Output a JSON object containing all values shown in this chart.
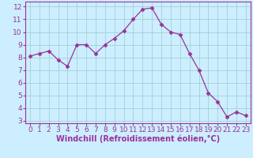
{
  "x": [
    0,
    1,
    2,
    3,
    4,
    5,
    6,
    7,
    8,
    9,
    10,
    11,
    12,
    13,
    14,
    15,
    16,
    17,
    18,
    19,
    20,
    21,
    22,
    23
  ],
  "y": [
    8.1,
    8.3,
    8.5,
    7.8,
    7.3,
    9.0,
    9.0,
    8.3,
    9.0,
    9.5,
    10.1,
    11.0,
    11.8,
    11.9,
    10.6,
    10.0,
    9.8,
    8.3,
    7.0,
    5.2,
    4.5,
    3.3,
    3.7,
    3.4
  ],
  "line_color": "#993399",
  "marker": "D",
  "marker_size": 2.5,
  "bg_color": "#cceeff",
  "grid_color": "#99cccc",
  "xlabel": "Windchill (Refroidissement éolien,°C)",
  "tick_color": "#993399",
  "ylim": [
    2.8,
    12.4
  ],
  "xlim": [
    -0.5,
    23.5
  ],
  "yticks": [
    3,
    4,
    5,
    6,
    7,
    8,
    9,
    10,
    11,
    12
  ],
  "xticks": [
    0,
    1,
    2,
    3,
    4,
    5,
    6,
    7,
    8,
    9,
    10,
    11,
    12,
    13,
    14,
    15,
    16,
    17,
    18,
    19,
    20,
    21,
    22,
    23
  ],
  "tick_fontsize": 6.5,
  "xlabel_fontsize": 7,
  "spine_color": "#993399"
}
